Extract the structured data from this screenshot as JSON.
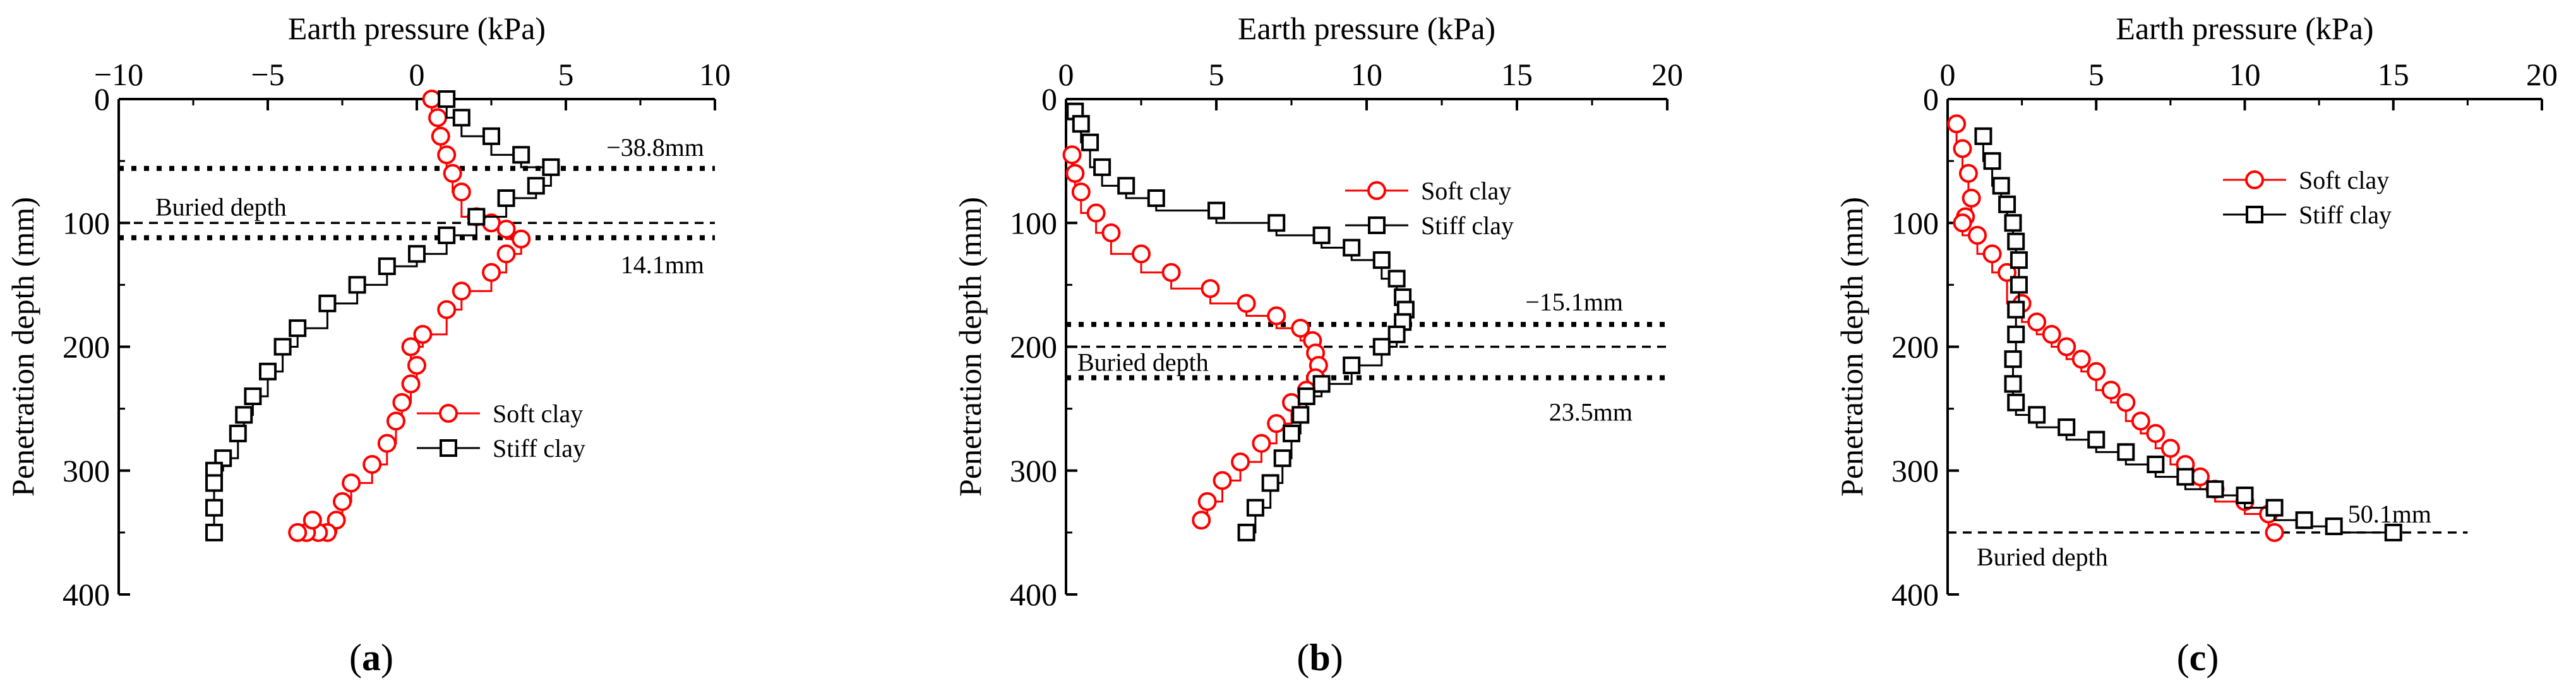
{
  "colors": {
    "soft": "#ff0000",
    "stiff": "#000000",
    "axis": "#000000"
  },
  "chart_data": [
    {
      "type": "line",
      "panel_label": "a",
      "xlabel": "Earth pressure (kPa)",
      "ylabel": "Penetration depth (mm)",
      "xlim": [
        -10,
        10
      ],
      "ylim": [
        0,
        400
      ],
      "xticks": [
        -10,
        -5,
        0,
        5,
        10
      ],
      "yticks": [
        0,
        100,
        200,
        300,
        400
      ],
      "legend_position": "lower-right",
      "series": [
        {
          "name": "Soft clay",
          "marker": "circle",
          "x": [
            0.5,
            0.7,
            0.8,
            1.0,
            1.2,
            1.5,
            2.0,
            2.5,
            3.0,
            3.5,
            3.0,
            2.5,
            1.5,
            1.0,
            0.2,
            -0.2,
            0.0,
            -0.2,
            -0.5,
            -0.7,
            -1.0,
            -1.5,
            -2.2,
            -2.5,
            -2.7,
            -3.0,
            -3.3,
            -3.7,
            -3.5,
            -4.0
          ],
          "y": [
            0,
            15,
            30,
            45,
            60,
            75,
            95,
            100,
            105,
            113,
            125,
            140,
            155,
            170,
            190,
            200,
            215,
            230,
            245,
            260,
            278,
            295,
            310,
            325,
            340,
            350,
            350,
            350,
            340,
            350
          ]
        },
        {
          "name": "Stiff clay",
          "marker": "square",
          "x": [
            1.0,
            1.5,
            2.5,
            3.5,
            4.5,
            4.0,
            3.0,
            2.0,
            1.0,
            0.0,
            -1.0,
            -2.0,
            -3.0,
            -4.0,
            -4.5,
            -5.0,
            -5.5,
            -5.8,
            -6.0,
            -6.5,
            -6.8,
            -6.8,
            -6.8,
            -6.8
          ],
          "y": [
            0,
            15,
            30,
            45,
            55,
            70,
            80,
            95,
            110,
            125,
            135,
            150,
            165,
            185,
            200,
            220,
            240,
            255,
            270,
            290,
            300,
            310,
            330,
            350
          ]
        }
      ],
      "reference_lines": [
        {
          "label": "−38.8mm",
          "y": 56,
          "style": "dotted"
        },
        {
          "label": "Buried depth",
          "y": 100,
          "style": "dashed"
        },
        {
          "label": "14.1mm",
          "y": 112,
          "style": "dotted"
        }
      ]
    },
    {
      "type": "line",
      "panel_label": "b",
      "xlabel": "Earth pressure (kPa)",
      "ylabel": "Penetration depth (mm)",
      "xlim": [
        0,
        20
      ],
      "ylim": [
        0,
        400
      ],
      "xticks": [
        0,
        5,
        10,
        15,
        20
      ],
      "yticks": [
        0,
        100,
        200,
        300,
        400
      ],
      "legend_position": "top-right",
      "series": [
        {
          "name": "Soft clay",
          "marker": "circle",
          "x": [
            0.2,
            0.3,
            0.5,
            1.0,
            1.5,
            2.5,
            3.5,
            4.8,
            6.0,
            7.0,
            7.8,
            8.2,
            8.3,
            8.4,
            8.3,
            8.0,
            7.5,
            7.0,
            6.5,
            5.8,
            5.2,
            4.7,
            4.5
          ],
          "y": [
            45,
            60,
            75,
            92,
            108,
            125,
            140,
            153,
            165,
            175,
            185,
            195,
            205,
            215,
            225,
            235,
            245,
            262,
            278,
            293,
            308,
            325,
            340
          ]
        },
        {
          "name": "Stiff clay",
          "marker": "square",
          "x": [
            0.3,
            0.5,
            0.8,
            1.2,
            2.0,
            3.0,
            5.0,
            7.0,
            8.5,
            9.5,
            10.5,
            11.0,
            11.2,
            11.3,
            11.2,
            11.0,
            10.5,
            9.5,
            8.5,
            8.0,
            7.8,
            7.5,
            7.2,
            6.8,
            6.3,
            6.0
          ],
          "y": [
            10,
            20,
            35,
            55,
            70,
            80,
            90,
            100,
            110,
            120,
            130,
            145,
            160,
            170,
            180,
            190,
            200,
            215,
            230,
            240,
            255,
            270,
            290,
            310,
            330,
            350
          ]
        }
      ],
      "reference_lines": [
        {
          "label": "−15.1mm",
          "y": 182,
          "style": "dotted"
        },
        {
          "label": "Buried depth",
          "y": 200,
          "style": "dashed"
        },
        {
          "label": "23.5mm",
          "y": 225,
          "style": "dotted"
        }
      ]
    },
    {
      "type": "line",
      "panel_label": "c",
      "xlabel": "Earth pressure (kPa)",
      "ylabel": "Penetration depth (mm)",
      "xlim": [
        0,
        20
      ],
      "ylim": [
        0,
        400
      ],
      "xticks": [
        0,
        5,
        10,
        15,
        20
      ],
      "yticks": [
        0,
        100,
        200,
        300,
        400
      ],
      "legend_position": "top-right",
      "series": [
        {
          "name": "Soft clay",
          "marker": "circle",
          "x": [
            0.3,
            0.5,
            0.7,
            0.8,
            0.6,
            0.5,
            1.0,
            1.5,
            2.0,
            2.5,
            3.0,
            3.5,
            4.0,
            4.5,
            5.0,
            5.5,
            6.0,
            6.5,
            7.0,
            7.5,
            8.0,
            8.5,
            9.0,
            10.0,
            10.8,
            11.0
          ],
          "y": [
            20,
            40,
            60,
            80,
            95,
            100,
            110,
            125,
            140,
            165,
            180,
            190,
            200,
            210,
            220,
            235,
            245,
            260,
            270,
            282,
            295,
            305,
            315,
            325,
            335,
            350
          ]
        },
        {
          "name": "Stiff clay",
          "marker": "square",
          "x": [
            1.2,
            1.5,
            1.8,
            2.0,
            2.2,
            2.3,
            2.4,
            2.4,
            2.3,
            2.3,
            2.2,
            2.2,
            2.3,
            3.0,
            4.0,
            5.0,
            6.0,
            7.0,
            8.0,
            9.0,
            10.0,
            11.0,
            12.0,
            13.0,
            15.0
          ],
          "y": [
            30,
            50,
            70,
            85,
            100,
            115,
            130,
            150,
            170,
            190,
            210,
            230,
            245,
            255,
            265,
            275,
            285,
            295,
            305,
            315,
            320,
            330,
            340,
            345,
            350
          ]
        }
      ],
      "reference_lines": [
        {
          "label": "50.1mm",
          "y": 350,
          "style": "dashed"
        },
        {
          "label": "Buried depth",
          "y": 350,
          "style": "dashed"
        }
      ]
    }
  ]
}
